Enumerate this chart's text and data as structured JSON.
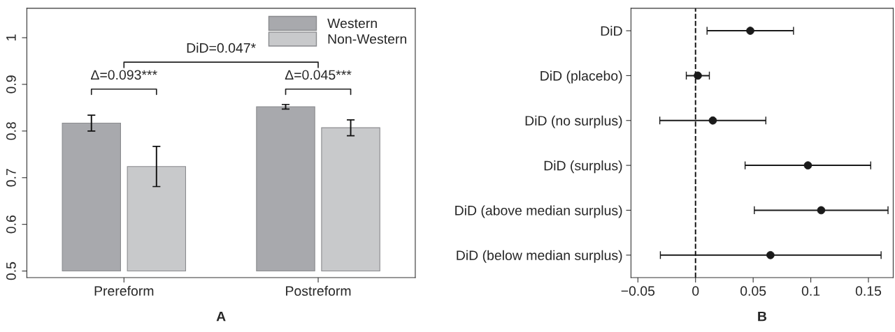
{
  "chart_data": [
    {
      "type": "bar",
      "categories": [
        "Prereform",
        "Postreform"
      ],
      "series": [
        {
          "name": "Western",
          "color": "#a8a9ad",
          "base": [
            0.5,
            0.5
          ],
          "values": [
            0.317,
            0.352
          ],
          "errors": [
            [
              0.8,
              0.834
            ],
            [
              0.847,
              0.857
            ]
          ]
        },
        {
          "name": "Non-Western",
          "color": "#c8c9cb",
          "base": [
            0.5,
            0.5
          ],
          "values": [
            0.224,
            0.307
          ],
          "errors": [
            [
              0.681,
              0.767
            ],
            [
              0.79,
              0.824
            ]
          ]
        }
      ],
      "ylim": [
        0.486,
        1.063
      ],
      "yticks": [
        0.5,
        0.6,
        0.7,
        0.8,
        0.9,
        1
      ],
      "legend": "top right",
      "annotations": [
        "Δ=0.093***",
        "Δ=0.045***",
        "DiD=0.047*",
        "A"
      ]
    },
    {
      "type": "scatter",
      "orientation": "horizontal",
      "categories": [
        "DiD",
        "DiD (placebo)",
        "DiD (no surplus)",
        "DiD (surplus)",
        "DiD (above median surplus)",
        "DiD (below median surplus)"
      ],
      "values": [
        0.0475,
        0.002,
        0.015,
        0.0975,
        0.109,
        0.065
      ],
      "errors": [
        [
          0.01,
          0.085
        ],
        [
          -0.008,
          0.012
        ],
        [
          -0.031,
          0.061
        ],
        [
          0.043,
          0.152
        ],
        [
          0.051,
          0.167
        ],
        [
          -0.0305,
          0.161
        ]
      ],
      "color": "#1a1a1a",
      "marker": "circle",
      "xlim": [
        -0.056,
        0.1715
      ],
      "xticks": [
        {
          "value": -0.05,
          "label": "−0.05"
        },
        0,
        0.05,
        0.1,
        0.15
      ],
      "ref_lines": [
        {
          "axis": "x",
          "value": 0,
          "line_style": "dashed"
        }
      ],
      "annotations": [
        "B"
      ]
    }
  ]
}
